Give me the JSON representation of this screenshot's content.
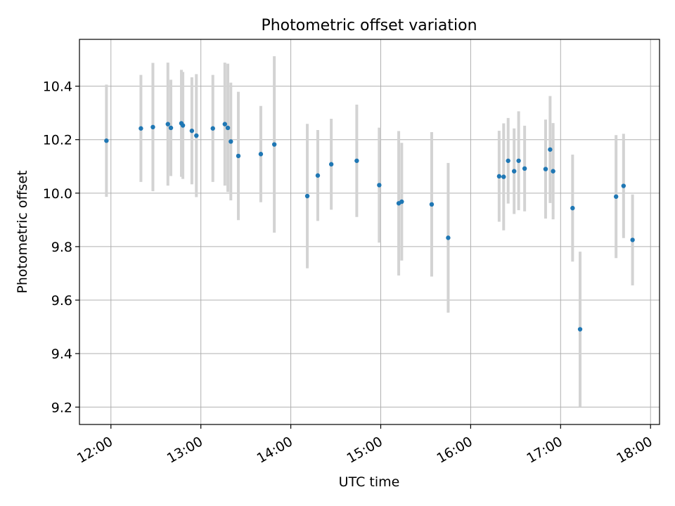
{
  "chart_data": {
    "type": "scatter",
    "title": "Photometric offset variation",
    "xlabel": "UTC time",
    "ylabel": "Photometric offset",
    "x_ticks": [
      "12:00",
      "13:00",
      "14:00",
      "15:00",
      "16:00",
      "17:00",
      "18:00"
    ],
    "y_ticks": [
      "9.2",
      "9.4",
      "9.6",
      "9.8",
      "10.0",
      "10.2",
      "10.4"
    ],
    "xlim": [
      "11:39",
      "18:06"
    ],
    "ylim": [
      9.135,
      10.575
    ],
    "grid": true,
    "colors": {
      "point": "#1f77b4",
      "errorbar": "#d3d3d3",
      "grid": "#b0b0b0"
    },
    "points": [
      {
        "t": "11:57",
        "y": 10.196,
        "err": 0.21
      },
      {
        "t": "12:20",
        "y": 10.242,
        "err": 0.2
      },
      {
        "t": "12:28",
        "y": 10.247,
        "err": 0.24
      },
      {
        "t": "12:38",
        "y": 10.258,
        "err": 0.23
      },
      {
        "t": "12:40",
        "y": 10.244,
        "err": 0.18
      },
      {
        "t": "12:47",
        "y": 10.261,
        "err": 0.2
      },
      {
        "t": "12:48",
        "y": 10.253,
        "err": 0.2
      },
      {
        "t": "12:54",
        "y": 10.233,
        "err": 0.2
      },
      {
        "t": "12:57",
        "y": 10.215,
        "err": 0.23
      },
      {
        "t": "13:08",
        "y": 10.242,
        "err": 0.2
      },
      {
        "t": "13:16",
        "y": 10.258,
        "err": 0.23
      },
      {
        "t": "13:18",
        "y": 10.244,
        "err": 0.24
      },
      {
        "t": "13:20",
        "y": 10.193,
        "err": 0.22
      },
      {
        "t": "13:25",
        "y": 10.139,
        "err": 0.24
      },
      {
        "t": "13:40",
        "y": 10.146,
        "err": 0.18
      },
      {
        "t": "13:49",
        "y": 10.182,
        "err": 0.33
      },
      {
        "t": "14:11",
        "y": 9.989,
        "err": 0.27
      },
      {
        "t": "14:18",
        "y": 10.066,
        "err": 0.17
      },
      {
        "t": "14:27",
        "y": 10.108,
        "err": 0.17
      },
      {
        "t": "14:44",
        "y": 10.121,
        "err": 0.21
      },
      {
        "t": "14:59",
        "y": 10.03,
        "err": 0.215
      },
      {
        "t": "15:12",
        "y": 9.962,
        "err": 0.27
      },
      {
        "t": "15:14",
        "y": 9.968,
        "err": 0.22
      },
      {
        "t": "15:34",
        "y": 9.958,
        "err": 0.27
      },
      {
        "t": "15:45",
        "y": 9.833,
        "err": 0.28
      },
      {
        "t": "16:19",
        "y": 10.063,
        "err": 0.17
      },
      {
        "t": "16:22",
        "y": 10.061,
        "err": 0.2
      },
      {
        "t": "16:25",
        "y": 10.121,
        "err": 0.16
      },
      {
        "t": "16:29",
        "y": 10.082,
        "err": 0.16
      },
      {
        "t": "16:32",
        "y": 10.121,
        "err": 0.185
      },
      {
        "t": "16:36",
        "y": 10.092,
        "err": 0.16
      },
      {
        "t": "16:50",
        "y": 10.09,
        "err": 0.185
      },
      {
        "t": "16:53",
        "y": 10.163,
        "err": 0.2
      },
      {
        "t": "16:55",
        "y": 10.082,
        "err": 0.18
      },
      {
        "t": "17:08",
        "y": 9.944,
        "err": 0.2
      },
      {
        "t": "17:13",
        "y": 9.491,
        "err": 0.29
      },
      {
        "t": "17:37",
        "y": 9.987,
        "err": 0.23
      },
      {
        "t": "17:42",
        "y": 10.027,
        "err": 0.195
      },
      {
        "t": "17:48",
        "y": 9.825,
        "err": 0.17
      }
    ]
  }
}
